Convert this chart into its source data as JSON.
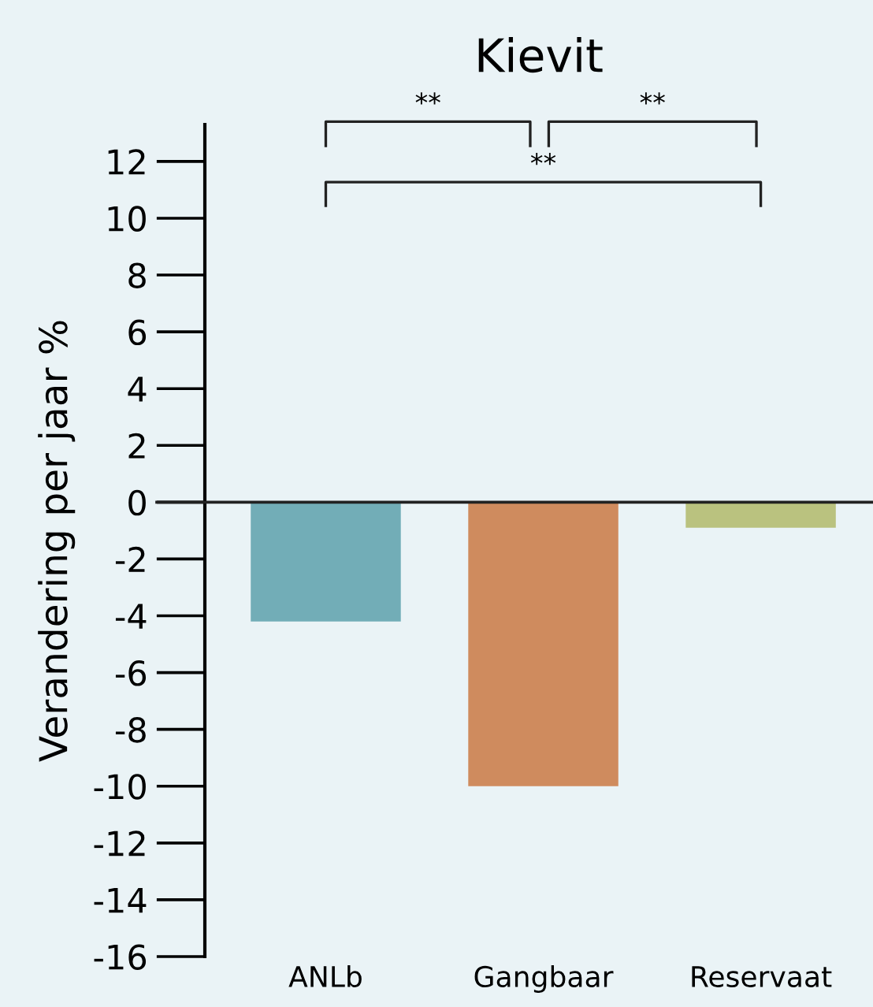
{
  "chart_data": {
    "type": "bar",
    "title": "Kievit",
    "ylabel": "Verandering per jaar %",
    "categories": [
      "ANLb",
      "Gangbaar",
      "Reservaat"
    ],
    "values": [
      -4.2,
      -10.0,
      -0.9
    ],
    "colors": [
      "#72adb7",
      "#cf8b5e",
      "#bac27f"
    ],
    "ylim": [
      -16,
      13.3
    ],
    "yticks": [
      -16,
      -14,
      -12,
      -10,
      -8,
      -6,
      -4,
      -2,
      0,
      2,
      4,
      6,
      8,
      10,
      12
    ],
    "legend": false,
    "annotations": [
      "**",
      "**",
      "**"
    ]
  }
}
